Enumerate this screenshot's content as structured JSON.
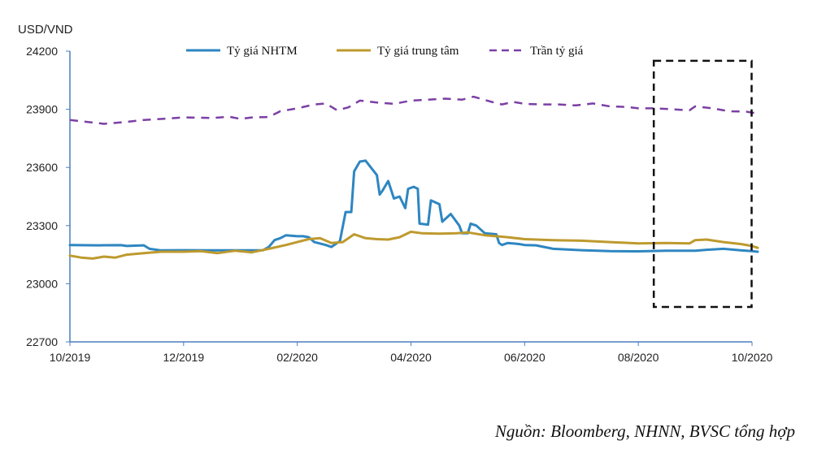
{
  "chart_data": {
    "type": "line",
    "y_unit_label": "USD/VND",
    "ylim": [
      22700,
      24200
    ],
    "y_ticks": [
      22700,
      23000,
      23300,
      23600,
      23900,
      24200
    ],
    "x_tick_labels": [
      "10/2019",
      "12/2019",
      "02/2020",
      "04/2020",
      "06/2020",
      "08/2020",
      "10/2020"
    ],
    "x_ticks_month_index": [
      0,
      2,
      4,
      6,
      8,
      10,
      12
    ],
    "xlim": [
      0,
      12
    ],
    "grid": false,
    "legend_position": "top",
    "highlight_box_months": [
      10.1,
      12.05
    ],
    "highlight_box_values": [
      22880,
      24150
    ],
    "series": [
      {
        "name": "Tỷ giá NHTM",
        "color": "#2E86C1",
        "style": "solid",
        "points": [
          [
            0,
            23200
          ],
          [
            0.5,
            23198
          ],
          [
            0.9,
            23199
          ],
          [
            1.0,
            23195
          ],
          [
            1.3,
            23198
          ],
          [
            1.4,
            23180
          ],
          [
            1.6,
            23172
          ],
          [
            2.0,
            23173
          ],
          [
            2.5,
            23172
          ],
          [
            3.0,
            23172
          ],
          [
            3.4,
            23173
          ],
          [
            3.5,
            23190
          ],
          [
            3.6,
            23225
          ],
          [
            3.7,
            23235
          ],
          [
            3.8,
            23250
          ],
          [
            4.0,
            23245
          ],
          [
            4.1,
            23245
          ],
          [
            4.2,
            23240
          ],
          [
            4.3,
            23215
          ],
          [
            4.5,
            23200
          ],
          [
            4.6,
            23190
          ],
          [
            4.75,
            23220
          ],
          [
            4.85,
            23370
          ],
          [
            4.95,
            23370
          ],
          [
            5.0,
            23580
          ],
          [
            5.1,
            23630
          ],
          [
            5.2,
            23635
          ],
          [
            5.4,
            23560
          ],
          [
            5.45,
            23460
          ],
          [
            5.5,
            23480
          ],
          [
            5.6,
            23530
          ],
          [
            5.7,
            23440
          ],
          [
            5.8,
            23450
          ],
          [
            5.9,
            23390
          ],
          [
            5.95,
            23490
          ],
          [
            6.05,
            23500
          ],
          [
            6.12,
            23490
          ],
          [
            6.15,
            23310
          ],
          [
            6.3,
            23305
          ],
          [
            6.35,
            23430
          ],
          [
            6.5,
            23410
          ],
          [
            6.55,
            23320
          ],
          [
            6.7,
            23360
          ],
          [
            6.85,
            23300
          ],
          [
            6.9,
            23260
          ],
          [
            7.0,
            23260
          ],
          [
            7.05,
            23310
          ],
          [
            7.15,
            23300
          ],
          [
            7.3,
            23260
          ],
          [
            7.5,
            23255
          ],
          [
            7.55,
            23210
          ],
          [
            7.6,
            23200
          ],
          [
            7.7,
            23210
          ],
          [
            7.9,
            23205
          ],
          [
            8.0,
            23200
          ],
          [
            8.2,
            23198
          ],
          [
            8.5,
            23180
          ],
          [
            9.0,
            23173
          ],
          [
            9.5,
            23168
          ],
          [
            10.0,
            23167
          ],
          [
            10.5,
            23170
          ],
          [
            11.0,
            23170
          ],
          [
            11.2,
            23175
          ],
          [
            11.5,
            23180
          ],
          [
            11.8,
            23172
          ],
          [
            12.0,
            23168
          ],
          [
            12.1,
            23165
          ]
        ]
      },
      {
        "name": "Tỷ giá trung tâm",
        "color": "#BE9A2E",
        "style": "solid",
        "points": [
          [
            0,
            23145
          ],
          [
            0.2,
            23135
          ],
          [
            0.4,
            23130
          ],
          [
            0.6,
            23140
          ],
          [
            0.8,
            23135
          ],
          [
            1.0,
            23150
          ],
          [
            1.3,
            23158
          ],
          [
            1.6,
            23165
          ],
          [
            2.0,
            23165
          ],
          [
            2.3,
            23168
          ],
          [
            2.6,
            23158
          ],
          [
            2.9,
            23170
          ],
          [
            3.2,
            23162
          ],
          [
            3.5,
            23180
          ],
          [
            3.8,
            23200
          ],
          [
            4.0,
            23215
          ],
          [
            4.2,
            23230
          ],
          [
            4.4,
            23235
          ],
          [
            4.6,
            23210
          ],
          [
            4.8,
            23215
          ],
          [
            5.0,
            23255
          ],
          [
            5.2,
            23235
          ],
          [
            5.4,
            23230
          ],
          [
            5.6,
            23228
          ],
          [
            5.8,
            23240
          ],
          [
            6.0,
            23268
          ],
          [
            6.2,
            23260
          ],
          [
            6.5,
            23258
          ],
          [
            6.8,
            23260
          ],
          [
            7.0,
            23265
          ],
          [
            7.3,
            23250
          ],
          [
            7.5,
            23245
          ],
          [
            7.7,
            23240
          ],
          [
            8.0,
            23230
          ],
          [
            8.5,
            23225
          ],
          [
            9.0,
            23222
          ],
          [
            9.5,
            23215
          ],
          [
            10.0,
            23208
          ],
          [
            10.5,
            23210
          ],
          [
            10.9,
            23208
          ],
          [
            11.0,
            23225
          ],
          [
            11.2,
            23228
          ],
          [
            11.5,
            23215
          ],
          [
            11.8,
            23205
          ],
          [
            12.0,
            23195
          ],
          [
            12.1,
            23185
          ]
        ]
      },
      {
        "name": "Trần tỷ giá",
        "color": "#7B3FA5",
        "style": "dashed",
        "points": [
          [
            0,
            23845
          ],
          [
            0.3,
            23835
          ],
          [
            0.6,
            23825
          ],
          [
            1.0,
            23835
          ],
          [
            1.3,
            23845
          ],
          [
            1.6,
            23850
          ],
          [
            2.0,
            23858
          ],
          [
            2.5,
            23855
          ],
          [
            2.8,
            23862
          ],
          [
            3.0,
            23850
          ],
          [
            3.2,
            23858
          ],
          [
            3.5,
            23860
          ],
          [
            3.7,
            23890
          ],
          [
            4.0,
            23905
          ],
          [
            4.3,
            23925
          ],
          [
            4.5,
            23930
          ],
          [
            4.7,
            23895
          ],
          [
            4.9,
            23910
          ],
          [
            5.1,
            23945
          ],
          [
            5.4,
            23935
          ],
          [
            5.7,
            23928
          ],
          [
            6.0,
            23945
          ],
          [
            6.3,
            23950
          ],
          [
            6.6,
            23955
          ],
          [
            6.9,
            23950
          ],
          [
            7.1,
            23965
          ],
          [
            7.4,
            23940
          ],
          [
            7.6,
            23925
          ],
          [
            7.8,
            23938
          ],
          [
            8.0,
            23928
          ],
          [
            8.3,
            23925
          ],
          [
            8.6,
            23925
          ],
          [
            8.9,
            23920
          ],
          [
            9.2,
            23930
          ],
          [
            9.5,
            23915
          ],
          [
            9.8,
            23912
          ],
          [
            10.0,
            23905
          ],
          [
            10.3,
            23905
          ],
          [
            10.6,
            23900
          ],
          [
            10.9,
            23895
          ],
          [
            11.0,
            23915
          ],
          [
            11.3,
            23905
          ],
          [
            11.6,
            23890
          ],
          [
            11.9,
            23888
          ],
          [
            12.1,
            23878
          ]
        ]
      }
    ]
  },
  "source_text": "Nguồn: Bloomberg, NHNN, BVSC tổng hợp"
}
